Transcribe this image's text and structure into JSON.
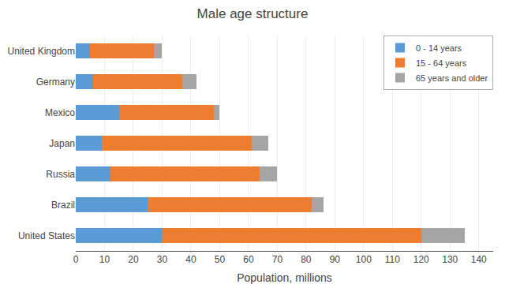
{
  "chart_data": {
    "type": "bar",
    "orientation": "horizontal",
    "stacked": true,
    "title": "Male age structure",
    "xlabel": "Population, millions",
    "categories": [
      "United States",
      "Brazil",
      "Russia",
      "Japan",
      "Mexico",
      "Germany",
      "United Kingdom"
    ],
    "series": [
      {
        "name": "0 - 14 years",
        "color": "#5b9bd5",
        "values": [
          30,
          25,
          12,
          9,
          15,
          6,
          5
        ]
      },
      {
        "name": "15 - 64 years",
        "color": "#ed7d31",
        "values": [
          90,
          57,
          52,
          52,
          33,
          31,
          22
        ]
      },
      {
        "name": "65 years and older",
        "color": "#a5a5a5",
        "values": [
          15,
          4,
          6,
          6,
          2,
          5,
          3
        ]
      }
    ],
    "xlim": [
      0,
      145
    ],
    "xticks": [
      0,
      10,
      20,
      30,
      40,
      50,
      60,
      70,
      80,
      90,
      100,
      110,
      120,
      130,
      140
    ],
    "grid": true,
    "legend": "upper right"
  }
}
